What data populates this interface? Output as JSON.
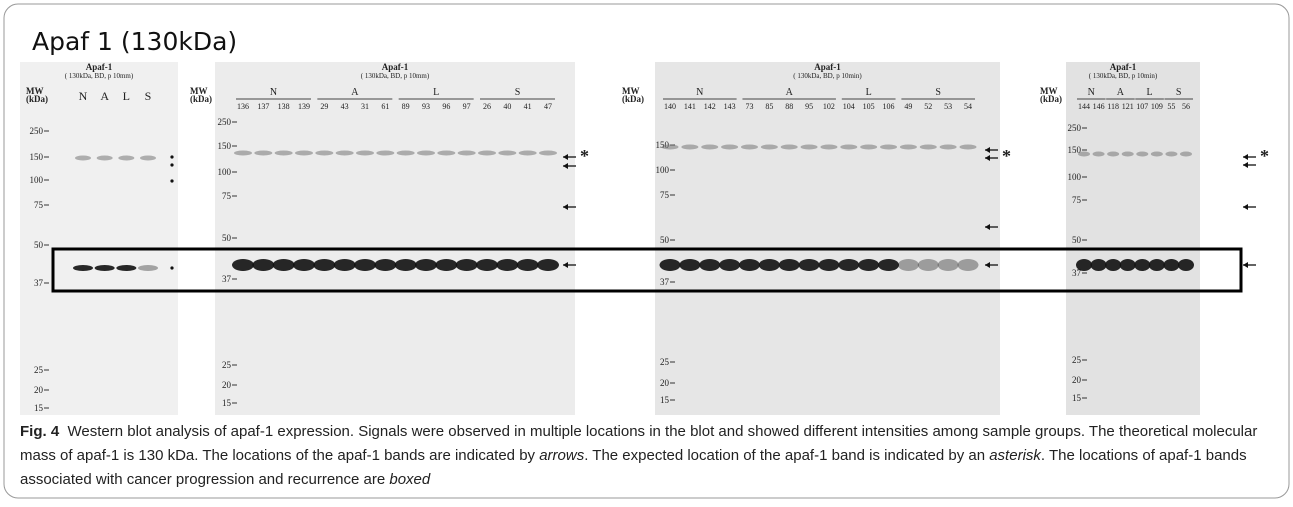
{
  "title": "Apaf 1 (130kDa)",
  "panels": [
    {
      "header": "Apaf-1",
      "subheader": "( 130kDa, BD, p 10mm)",
      "mw_label": [
        "MW",
        "(kDa)"
      ],
      "groups": [
        {
          "name": "N"
        },
        {
          "name": "A"
        },
        {
          "name": "L"
        },
        {
          "name": "S"
        }
      ],
      "markers": [
        250,
        150,
        100,
        75,
        50,
        37,
        25,
        20,
        15
      ]
    },
    {
      "header": "Apaf-1",
      "subheader": "( 130kDa, BD, p 10mm)",
      "mw_label": [
        "MW",
        "(kDa)"
      ],
      "groups": [
        {
          "name": "N",
          "lanes": [
            "136",
            "137",
            "138",
            "139"
          ]
        },
        {
          "name": "A",
          "lanes": [
            "29",
            "43",
            "31",
            "61"
          ]
        },
        {
          "name": "L",
          "lanes": [
            "89",
            "93",
            "96",
            "97"
          ]
        },
        {
          "name": "S",
          "lanes": [
            "26",
            "40",
            "41",
            "47"
          ]
        }
      ],
      "markers": [
        250,
        150,
        100,
        75,
        50,
        37,
        25,
        20,
        15
      ],
      "asterisk": "*"
    },
    {
      "header": "Apaf-1",
      "subheader": "( 130kDa, BD, p 10min)",
      "mw_label": [
        "MW",
        "(kDa)"
      ],
      "groups": [
        {
          "name": "N",
          "lanes": [
            "140",
            "141",
            "142",
            "143"
          ]
        },
        {
          "name": "A",
          "lanes": [
            "73",
            "85",
            "88",
            "95",
            "102"
          ]
        },
        {
          "name": "L",
          "lanes": [
            "104",
            "105",
            "106"
          ]
        },
        {
          "name": "S",
          "lanes": [
            "49",
            "52",
            "53",
            "54"
          ]
        }
      ],
      "markers": [
        150,
        100,
        75,
        50,
        37,
        25,
        20,
        15
      ],
      "asterisk": "*"
    },
    {
      "header": "Apaf-1",
      "subheader": "( 130kDa, BD, p 10min)",
      "mw_label": [
        "MW",
        "(kDa)"
      ],
      "groups": [
        {
          "name": "N",
          "lanes": [
            "144",
            "146"
          ]
        },
        {
          "name": "A",
          "lanes": [
            "118",
            "121"
          ]
        },
        {
          "name": "L",
          "lanes": [
            "107",
            "109"
          ]
        },
        {
          "name": "S",
          "lanes": [
            "55",
            "56"
          ]
        }
      ],
      "markers": [
        250,
        150,
        100,
        75,
        50,
        37,
        25,
        20,
        15
      ],
      "asterisk": "*"
    }
  ],
  "caption": {
    "label": "Fig. 4",
    "text": [
      "Western blot analysis of apaf-1 expression. Signals were observed in multiple locations in the blot and showed different intensities among sample groups. The theoretical molecular mass of apaf-1 is 130 kDa. The locations of the apaf-1 bands are indicated by ",
      "arrows",
      ". The expected location of the apaf-1 band is indicated by an ",
      "asterisk",
      ". The locations of apaf-1 bands associated with cancer progression and recurrence are ",
      "boxed"
    ]
  }
}
